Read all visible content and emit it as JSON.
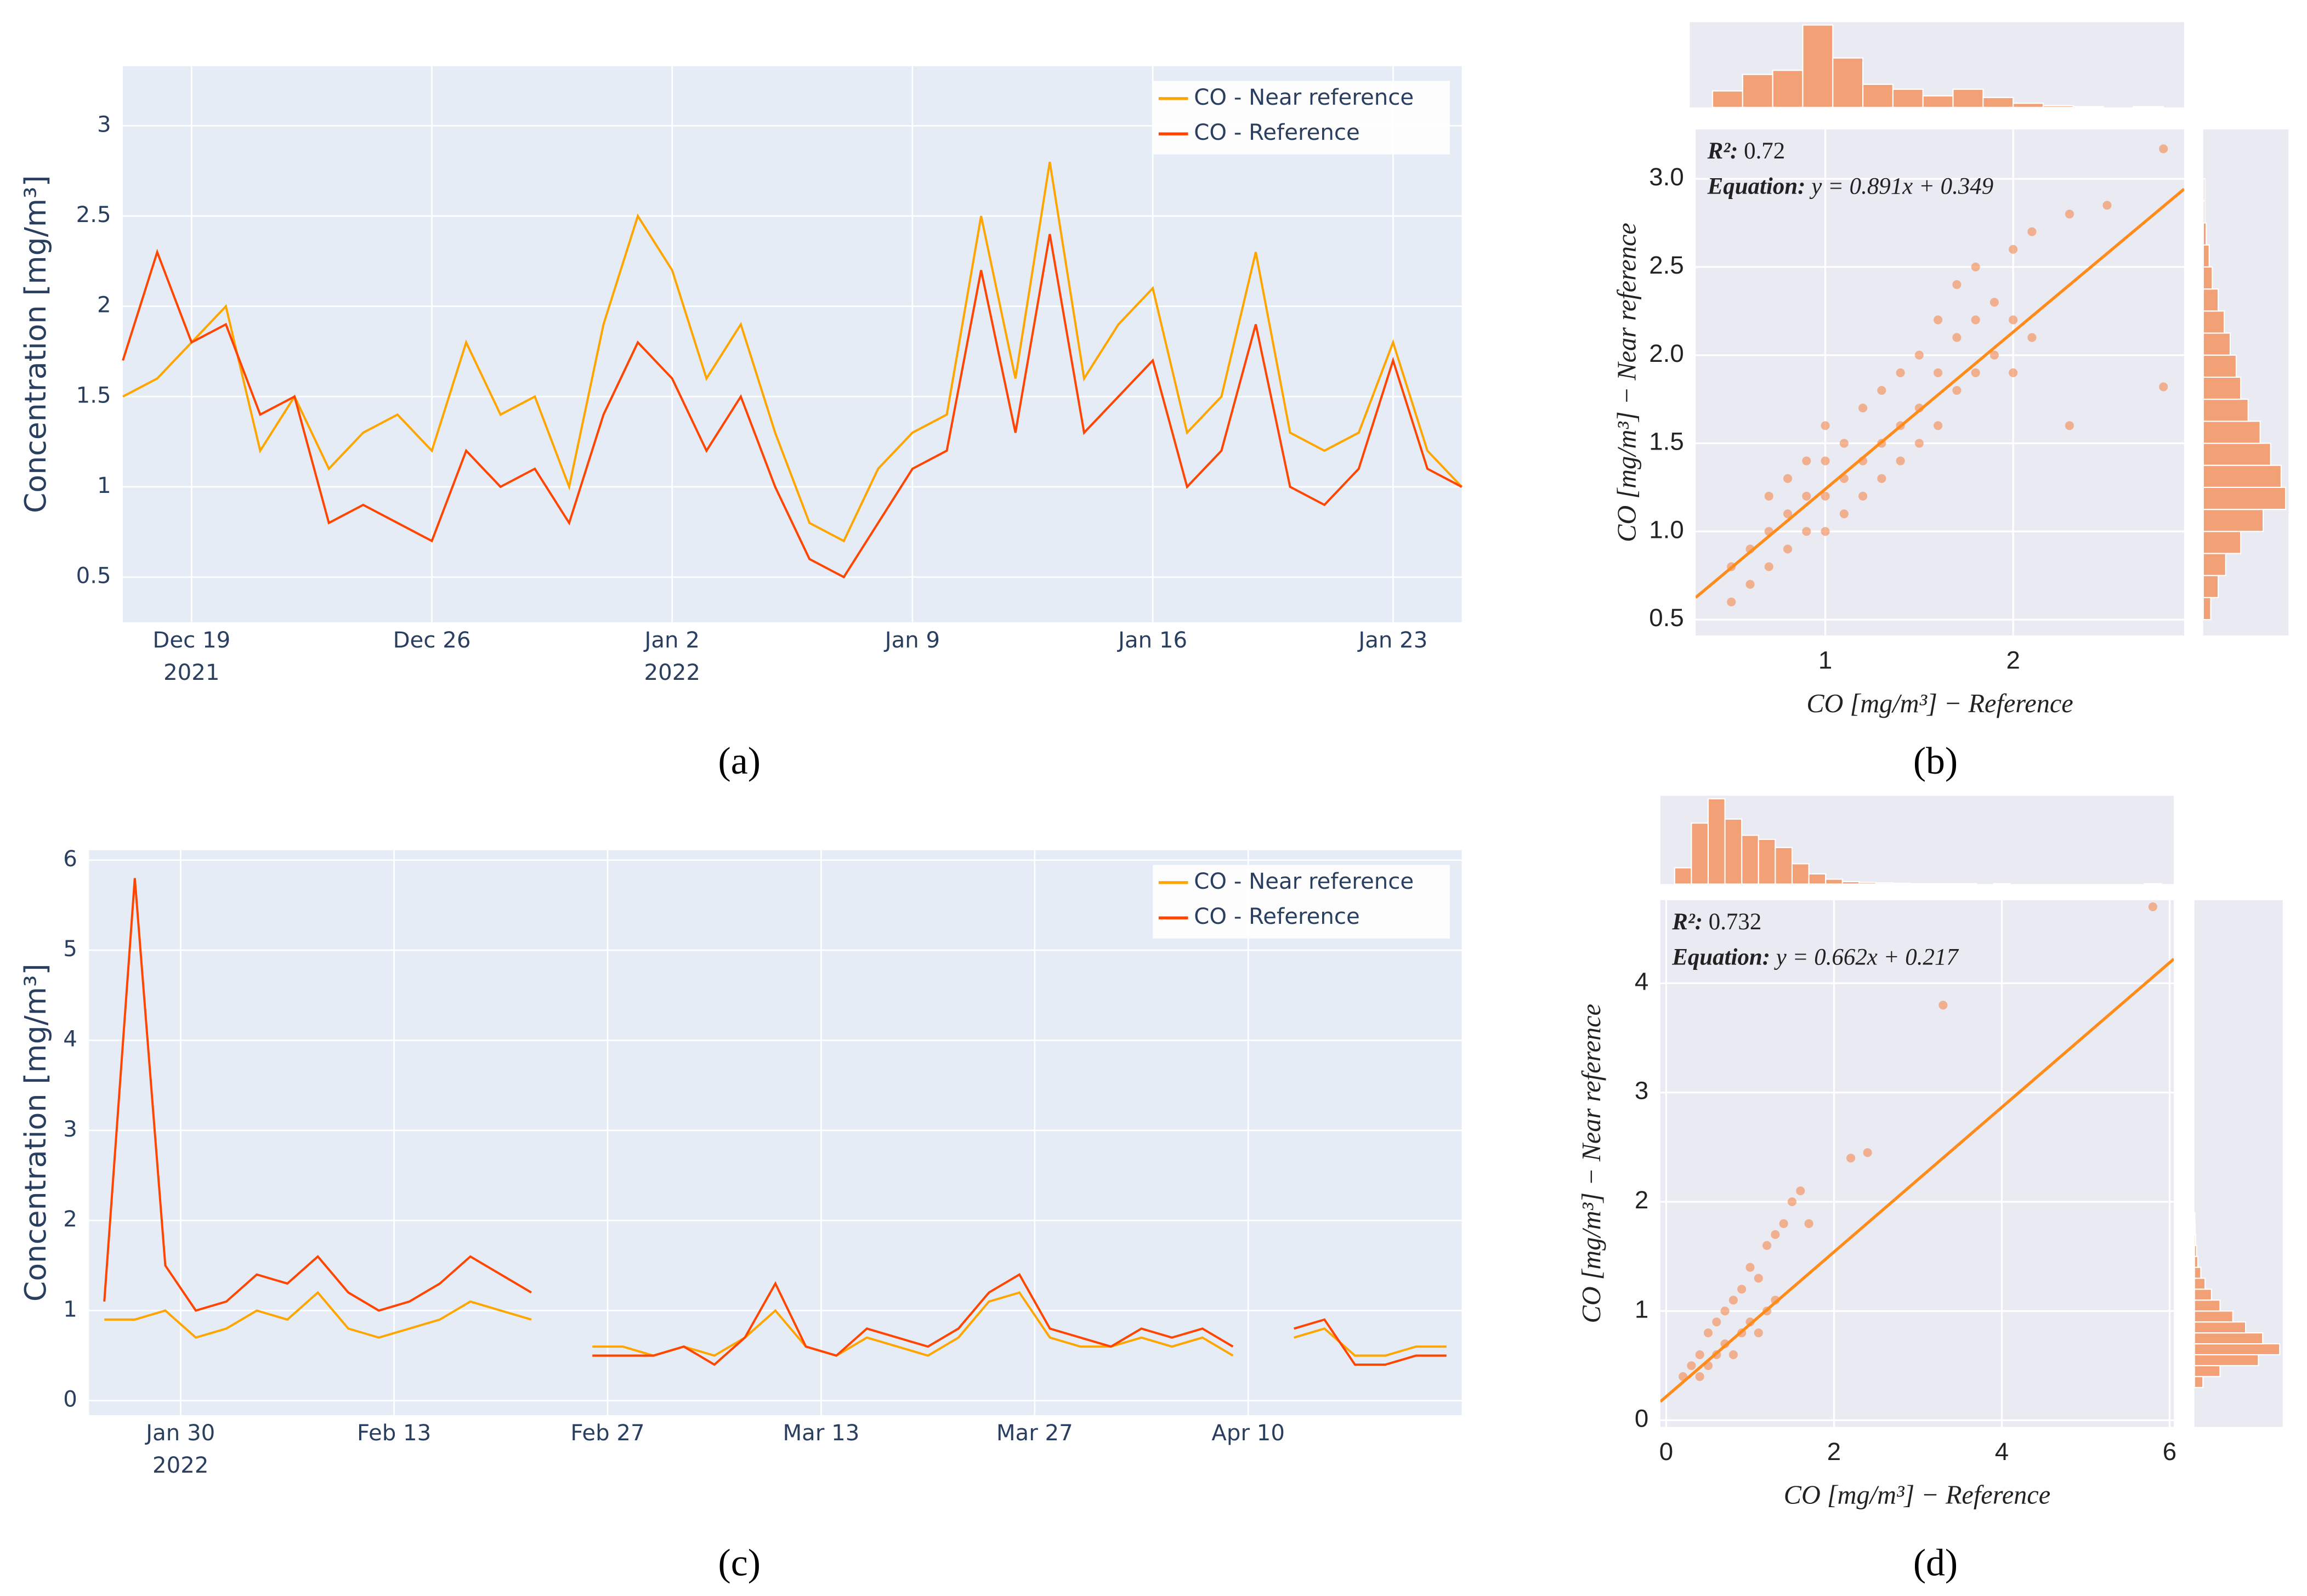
{
  "chart_data": [
    {
      "type": "line",
      "panel": "(a)",
      "y_label": "Concentration [mg/m³]",
      "x": [
        "2021-12-17",
        "2021-12-18",
        "2021-12-19",
        "2021-12-20",
        "2021-12-21",
        "2021-12-22",
        "2021-12-23",
        "2021-12-24",
        "2021-12-25",
        "2021-12-26",
        "2021-12-27",
        "2021-12-28",
        "2021-12-29",
        "2021-12-30",
        "2021-12-31",
        "2022-01-01",
        "2022-01-02",
        "2022-01-03",
        "2022-01-04",
        "2022-01-05",
        "2022-01-06",
        "2022-01-07",
        "2022-01-08",
        "2022-01-09",
        "2022-01-10",
        "2022-01-11",
        "2022-01-12",
        "2022-01-13",
        "2022-01-14",
        "2022-01-15",
        "2022-01-16",
        "2022-01-17",
        "2022-01-18",
        "2022-01-19",
        "2022-01-20",
        "2022-01-21",
        "2022-01-22",
        "2022-01-23",
        "2022-01-24",
        "2022-01-25"
      ],
      "series": [
        {
          "name": "CO - Near reference",
          "color": "#FFA500",
          "values": [
            1.5,
            1.6,
            1.8,
            2.0,
            1.2,
            1.5,
            1.1,
            1.3,
            1.4,
            1.2,
            1.8,
            1.4,
            1.5,
            1.0,
            1.9,
            2.5,
            2.2,
            1.6,
            1.9,
            1.3,
            0.8,
            0.7,
            1.1,
            1.3,
            1.4,
            2.5,
            1.6,
            2.8,
            1.6,
            1.9,
            2.1,
            1.3,
            1.5,
            2.3,
            1.3,
            1.2,
            1.3,
            1.8,
            1.2,
            1.0
          ]
        },
        {
          "name": "CO - Reference",
          "color": "#FF4500",
          "values": [
            1.7,
            2.3,
            1.8,
            1.9,
            1.4,
            1.5,
            0.8,
            0.9,
            0.8,
            0.7,
            1.2,
            1.0,
            1.1,
            0.8,
            1.4,
            1.8,
            1.6,
            1.2,
            1.5,
            1.0,
            0.6,
            0.5,
            0.8,
            1.1,
            1.2,
            2.2,
            1.3,
            2.4,
            1.3,
            1.5,
            1.7,
            1.0,
            1.2,
            1.9,
            1.0,
            0.9,
            1.1,
            1.7,
            1.1,
            1.0
          ]
        }
      ],
      "xlim": [
        "2021-12-17",
        "2022-01-25"
      ],
      "xticks": [
        {
          "value": "2021-12-19",
          "label": "Dec 19\n2021"
        },
        {
          "value": "2021-12-26",
          "label": "Dec 26"
        },
        {
          "value": "2022-01-02",
          "label": "Jan 2\n2022"
        },
        {
          "value": "2022-01-09",
          "label": "Jan 9"
        },
        {
          "value": "2022-01-16",
          "label": "Jan 16"
        },
        {
          "value": "2022-01-23",
          "label": "Jan 23"
        }
      ],
      "ylim": [
        0.25,
        3.33
      ],
      "yticks": [
        0.5,
        1,
        1.5,
        2,
        2.5,
        3
      ],
      "grid": true,
      "legend": "top-right"
    },
    {
      "type": "scatter",
      "panel": "(b)",
      "color": "#F4874B",
      "x_label": "CO [mg/m³] − Reference",
      "y_label": "CO [mg/m³] − Near reference",
      "r2_label": "R²:",
      "r2": 0.72,
      "equation_label": "Equation:",
      "equation": "y = 0.891x + 0.349",
      "slope": 0.891,
      "intercept": 0.349,
      "x": [
        0.5,
        0.5,
        0.6,
        0.6,
        0.7,
        0.7,
        0.7,
        0.8,
        0.8,
        0.8,
        0.9,
        0.9,
        0.9,
        1.0,
        1.0,
        1.0,
        1.0,
        1.1,
        1.1,
        1.1,
        1.2,
        1.2,
        1.2,
        1.3,
        1.3,
        1.3,
        1.4,
        1.4,
        1.4,
        1.5,
        1.5,
        1.5,
        1.6,
        1.6,
        1.6,
        1.7,
        1.7,
        1.7,
        1.8,
        1.8,
        1.8,
        1.9,
        1.9,
        2.0,
        2.0,
        2.0,
        2.1,
        2.1,
        2.3,
        2.3,
        2.5,
        2.8,
        2.8
      ],
      "y": [
        0.6,
        0.8,
        0.7,
        0.9,
        0.8,
        1.0,
        1.2,
        0.9,
        1.1,
        1.3,
        1.0,
        1.2,
        1.4,
        1.0,
        1.2,
        1.4,
        1.6,
        1.1,
        1.3,
        1.5,
        1.2,
        1.4,
        1.7,
        1.3,
        1.5,
        1.8,
        1.4,
        1.6,
        1.9,
        1.5,
        1.7,
        2.0,
        1.6,
        1.9,
        2.2,
        1.8,
        2.1,
        2.4,
        1.9,
        2.2,
        2.5,
        2.0,
        2.3,
        1.9,
        2.2,
        2.6,
        2.1,
        2.7,
        1.6,
        2.8,
        2.85,
        1.82,
        3.17
      ],
      "xlim": [
        0.31,
        2.91
      ],
      "xticks": [
        1,
        2
      ],
      "ylim": [
        0.41,
        3.28
      ],
      "yticks": [
        0.5,
        {
          "value": 1,
          "label": "1.0"
        },
        1.5,
        {
          "value": 2,
          "label": "2.0"
        },
        2.5,
        {
          "value": 3,
          "label": "3.0"
        }
      ],
      "grid": true,
      "top_hist": {
        "bins": [
          0.4,
          0.56,
          0.72,
          0.88,
          1.04,
          1.2,
          1.36,
          1.52,
          1.68,
          1.84,
          2.0,
          2.16,
          2.32,
          2.48,
          2.64,
          2.8
        ],
        "counts": [
          20,
          40,
          45,
          100,
          60,
          28,
          22,
          14,
          22,
          12,
          5,
          2,
          1,
          0,
          1
        ]
      },
      "right_hist": {
        "bins": [
          0.5,
          0.625,
          0.75,
          0.875,
          1,
          1.125,
          1.25,
          1.375,
          1.5,
          1.625,
          1.75,
          1.875,
          2,
          2.125,
          2.25,
          2.375,
          2.5,
          2.625,
          2.75,
          2.875,
          3
        ],
        "counts": [
          5,
          10,
          15,
          25,
          40,
          55,
          52,
          45,
          38,
          30,
          25,
          22,
          18,
          14,
          10,
          6,
          4,
          2,
          1,
          1
        ]
      }
    },
    {
      "type": "line",
      "panel": "(c)",
      "y_label": "Concentration [mg/m³]",
      "x": [
        "2022-01-25",
        "2022-01-27",
        "2022-01-29",
        "2022-01-31",
        "2022-02-02",
        "2022-02-04",
        "2022-02-06",
        "2022-02-08",
        "2022-02-10",
        "2022-02-12",
        "2022-02-14",
        "2022-02-16",
        "2022-02-18",
        "2022-02-20",
        "2022-02-22",
        "2022-02-24",
        "2022-02-26",
        "2022-02-28",
        "2022-03-02",
        "2022-03-04",
        "2022-03-06",
        "2022-03-08",
        "2022-03-10",
        "2022-03-12",
        "2022-03-14",
        "2022-03-16",
        "2022-03-18",
        "2022-03-20",
        "2022-03-22",
        "2022-03-24",
        "2022-03-26",
        "2022-03-28",
        "2022-03-30",
        "2022-04-01",
        "2022-04-03",
        "2022-04-05",
        "2022-04-07",
        "2022-04-09",
        "2022-04-11",
        "2022-04-13",
        "2022-04-15",
        "2022-04-17",
        "2022-04-19",
        "2022-04-21",
        "2022-04-23"
      ],
      "series": [
        {
          "name": "CO - Near reference",
          "color": "#FFA500",
          "values": [
            0.9,
            0.9,
            1.0,
            0.7,
            0.8,
            1.0,
            0.9,
            1.2,
            0.8,
            0.7,
            0.8,
            0.9,
            1.1,
            1.0,
            0.9,
            null,
            0.6,
            0.6,
            0.5,
            0.6,
            0.5,
            0.7,
            1.0,
            0.6,
            0.5,
            0.7,
            0.6,
            0.5,
            0.7,
            1.1,
            1.2,
            0.7,
            0.6,
            0.6,
            0.7,
            0.6,
            0.7,
            0.5,
            null,
            0.7,
            0.8,
            0.5,
            0.5,
            0.6,
            0.6
          ]
        },
        {
          "name": "CO - Reference",
          "color": "#FF4500",
          "values": [
            1.1,
            5.8,
            1.5,
            1.0,
            1.1,
            1.4,
            1.3,
            1.6,
            1.2,
            1.0,
            1.1,
            1.3,
            1.6,
            1.4,
            1.2,
            null,
            0.5,
            0.5,
            0.5,
            0.6,
            0.4,
            0.7,
            1.3,
            0.6,
            0.5,
            0.8,
            0.7,
            0.6,
            0.8,
            1.2,
            1.4,
            0.8,
            0.7,
            0.6,
            0.8,
            0.7,
            0.8,
            0.6,
            null,
            0.8,
            0.9,
            0.4,
            0.4,
            0.5,
            0.5
          ]
        }
      ],
      "xlim": [
        "2022-01-24",
        "2022-04-24"
      ],
      "xticks": [
        {
          "value": "2022-01-30",
          "label": "Jan 30\n2022"
        },
        {
          "value": "2022-02-13",
          "label": "Feb 13"
        },
        {
          "value": "2022-02-27",
          "label": "Feb 27"
        },
        {
          "value": "2022-03-13",
          "label": "Mar 13"
        },
        {
          "value": "2022-03-27",
          "label": "Mar 27"
        },
        {
          "value": "2022-04-10",
          "label": "Apr 10"
        }
      ],
      "ylim": [
        -0.16,
        6.11
      ],
      "yticks": [
        0,
        1,
        2,
        3,
        4,
        5,
        6
      ],
      "grid": true,
      "legend": "top-right"
    },
    {
      "type": "scatter",
      "panel": "(d)",
      "color": "#F4874B",
      "x_label": "CO [mg/m³] − Reference",
      "y_label": "CO [mg/m³] − Near reference",
      "r2_label": "R²:",
      "r2": 0.732,
      "equation_label": "Equation:",
      "equation": "y = 0.662x + 0.217",
      "slope": 0.662,
      "intercept": 0.217,
      "x": [
        0.2,
        0.3,
        0.4,
        0.4,
        0.5,
        0.5,
        0.6,
        0.6,
        0.7,
        0.7,
        0.8,
        0.8,
        0.9,
        0.9,
        1.0,
        1.0,
        1.1,
        1.1,
        1.2,
        1.2,
        1.3,
        1.3,
        1.4,
        1.5,
        1.6,
        1.7,
        2.2,
        2.4,
        3.3,
        5.8
      ],
      "y": [
        0.4,
        0.5,
        0.4,
        0.6,
        0.5,
        0.8,
        0.6,
        0.9,
        0.7,
        1.0,
        0.6,
        1.1,
        0.8,
        1.2,
        0.9,
        1.4,
        0.8,
        1.3,
        1.0,
        1.6,
        1.1,
        1.7,
        1.8,
        2.0,
        2.1,
        1.8,
        2.4,
        2.45,
        3.8,
        4.7
      ],
      "xlim": [
        -0.07,
        6.05
      ],
      "xticks": [
        0,
        2,
        4,
        6
      ],
      "ylim": [
        -0.06,
        4.76
      ],
      "yticks": [
        0,
        1,
        2,
        3,
        4
      ],
      "grid": true,
      "top_hist": {
        "bins": [
          0.1,
          0.3,
          0.5,
          0.7,
          0.9,
          1.1,
          1.3,
          1.5,
          1.7,
          1.9,
          2.1,
          2.3,
          2.5,
          2.7,
          2.9,
          3.1,
          3.3,
          3.5,
          3.7,
          3.9,
          4.1,
          4.3,
          4.5,
          4.7,
          4.9,
          5.1,
          5.3,
          5.5,
          5.7,
          5.9
        ],
        "counts": [
          40,
          150,
          210,
          160,
          120,
          110,
          90,
          50,
          25,
          12,
          6,
          4,
          3,
          2,
          1,
          1,
          1,
          1,
          0,
          1,
          0,
          0,
          0,
          0,
          0,
          0,
          0,
          0,
          1
        ]
      },
      "right_hist": {
        "bins": [
          0.3,
          0.4,
          0.5,
          0.6,
          0.7,
          0.8,
          0.9,
          1.0,
          1.1,
          1.2,
          1.3,
          1.4,
          1.5,
          1.6,
          1.7,
          1.8,
          1.9
        ],
        "counts": [
          20,
          60,
          150,
          200,
          160,
          120,
          90,
          60,
          40,
          25,
          15,
          8,
          5,
          3,
          2,
          1
        ]
      }
    }
  ]
}
